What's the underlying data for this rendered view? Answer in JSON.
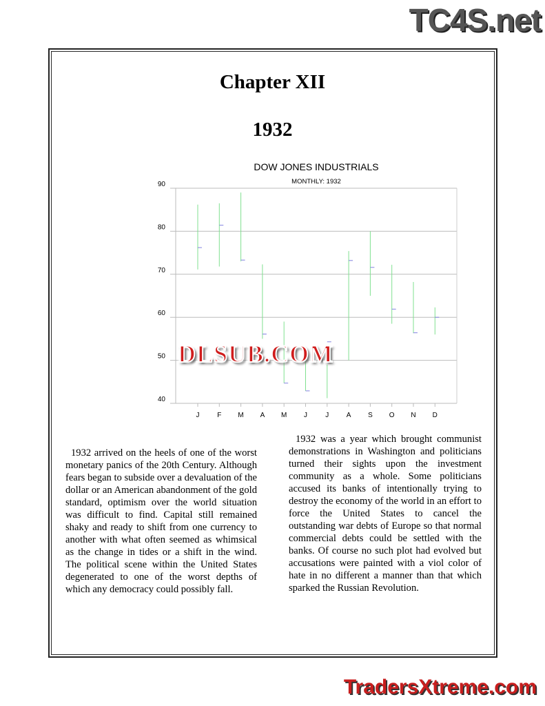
{
  "watermarks": {
    "top": "TC4S.net",
    "middle": "DLSUB.COM",
    "bottom": "TradersXtreme.com"
  },
  "page": {
    "chapter": "Chapter XII",
    "year": "1932",
    "left_text": "1932 arrived on the heels of one of the worst monetary panics of the 20th Century. Although fears began to subside over a devaluation of the dollar or an American abandonment of the gold standard, optimism over the world situation was difficult to find.  Capital still remained shaky and ready to shift from one currency to another with what often seemed as whimsical as the change in tides or a shift in the wind. The political scene within the United States degenerated to one of the worst depths of which any democracy could possibly fall.",
    "right_text": "1932 was a year which brought communist demonstrations in Washington and politicians turned their sights upon the investment community as a whole.  Some politicians accused its banks of intentionally trying to destroy the economy of the world in an effort to force the United States to cancel the outstanding war debts of Europe so that normal commercial debts could be settled with the banks.  Of course no such plot had evolved but accusations were painted with a viol color of hate in no different a manner than that which sparked the Russian Revolution."
  },
  "chart_data": {
    "type": "ohlc-bar",
    "title": "DOW JONES INDUSTRIALS",
    "subtitle": "MONTHLY: 1932",
    "categories": [
      "J",
      "F",
      "M",
      "A",
      "M",
      "J",
      "J",
      "A",
      "S",
      "O",
      "N",
      "D"
    ],
    "high": [
      86.2,
      86.5,
      89.0,
      72.3,
      59.0,
      52.0,
      49.0,
      75.4,
      80.0,
      72.2,
      68.2,
      62.3
    ],
    "low": [
      71.1,
      71.8,
      73.0,
      55.0,
      44.7,
      42.9,
      41.2,
      50.0,
      65.0,
      58.5,
      56.3,
      56.0
    ],
    "close": [
      76.2,
      81.4,
      73.3,
      56.1,
      44.7,
      42.9,
      54.3,
      73.2,
      71.6,
      61.9,
      56.4,
      60.0
    ],
    "yticks": [
      40,
      50,
      60,
      70,
      80,
      90
    ],
    "ylim": [
      40,
      90
    ],
    "grid": true,
    "colors": {
      "range": "#7fe08f",
      "close": "#8080e0"
    }
  }
}
